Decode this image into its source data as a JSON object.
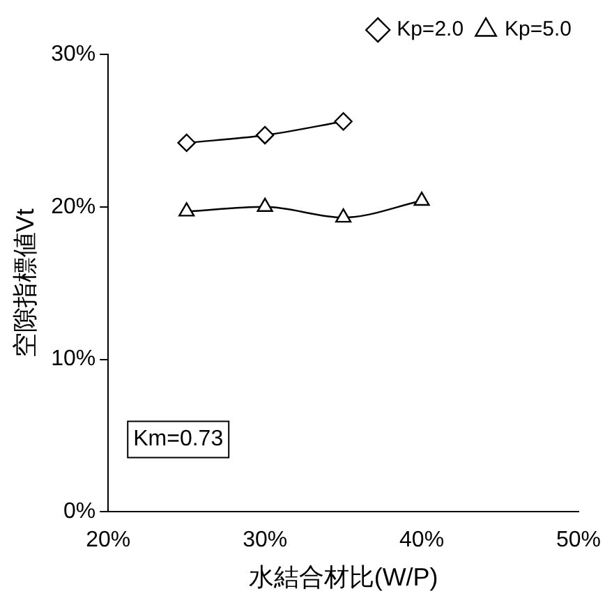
{
  "chart_data": {
    "type": "line",
    "xlabel": "水結合材比(W/P)",
    "ylabel": "空隙指標値Vt",
    "x": [
      25,
      30,
      35,
      40
    ],
    "series": [
      {
        "name": "Kp=2.0",
        "color": "#000000",
        "marker": "diamond",
        "values": [
          24.2,
          24.7,
          25.6,
          null
        ]
      },
      {
        "name": "Kp=5.0",
        "color": "#000000",
        "marker": "triangle",
        "values": [
          19.7,
          20.0,
          19.3,
          20.4
        ]
      }
    ],
    "xlim": [
      20,
      50
    ],
    "xticks": [
      {
        "value": 20,
        "label": "20%"
      },
      {
        "value": 30,
        "label": "30%"
      },
      {
        "value": 40,
        "label": "40%"
      },
      {
        "value": 50,
        "label": "50%"
      }
    ],
    "ylim": [
      0,
      30
    ],
    "yticks": [
      {
        "value": 0,
        "label": "0%"
      },
      {
        "value": 10,
        "label": "10%"
      },
      {
        "value": 20,
        "label": "20%"
      },
      {
        "value": 30,
        "label": "30%"
      }
    ],
    "grid": false,
    "legend": "top right",
    "line_style": "solid",
    "annotations": [
      "Km=0.73"
    ]
  }
}
